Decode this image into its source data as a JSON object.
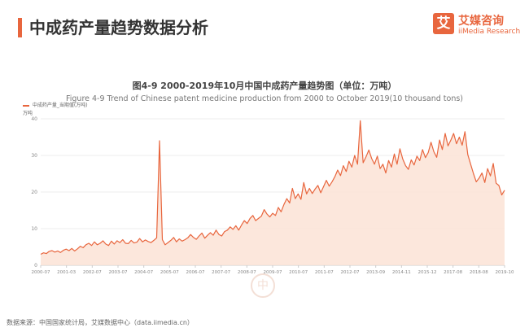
{
  "header": {
    "title": "中成药产量趋势数据分析"
  },
  "brand": {
    "logo_char": "艾",
    "name_cn": "艾媒咨询",
    "name_en": "iiMedia Research",
    "color": "#e8663e"
  },
  "chart_data": {
    "type": "area",
    "title": "图4-9 2000-2019年10月中国中成药产量趋势图（单位：万吨）",
    "subtitle": "Figure 4-9 Trend of Chinese patent medicine production from 2000 to October 2019(10 thousand tons)",
    "legend": "中成药产量_当期值(万吨)",
    "unit_label": "万吨",
    "x_ticks": [
      "2000-07",
      "2001-03",
      "2002-07",
      "2003-07",
      "2004-07",
      "2005-07",
      "2006-07",
      "2007-07",
      "2008-07",
      "2009-07",
      "2010-07",
      "2011-07",
      "2012-07",
      "2013-09",
      "2014-11",
      "2015-12",
      "2017-08",
      "2018-08",
      "2019-10"
    ],
    "ylim": [
      0,
      40
    ],
    "y_ticks": [
      0,
      10,
      20,
      30,
      40
    ],
    "line_color": "#e8663e",
    "fill_color": "#fbe3d6",
    "series": [
      {
        "values": [
          3,
          3.4,
          3.2,
          3.8,
          4,
          3.6,
          3.9,
          3.5,
          4.1,
          4.4,
          4.0,
          4.6,
          3.9,
          4.5,
          5.2,
          4.8,
          5.6,
          6.0,
          5.4,
          6.4,
          5.6,
          6.0,
          6.7,
          5.8,
          5.4,
          6.6,
          5.8,
          6.7,
          6.2,
          7.0,
          6.0,
          5.9,
          6.8,
          6.1,
          6.3,
          7.3,
          6.4,
          6.9,
          6.5,
          6.2,
          6.8,
          7.5,
          34.0,
          7.0,
          5.6,
          6.2,
          6.8,
          7.6,
          6.4,
          7.2,
          6.6,
          7.0,
          7.5,
          8.4,
          7.6,
          7.1,
          8.0,
          8.8,
          7.4,
          8.2,
          8.9,
          8.2,
          9.6,
          8.4,
          8.0,
          9.2,
          9.6,
          10.5,
          9.8,
          10.8,
          9.6,
          11.0,
          12.2,
          11.4,
          12.8,
          13.6,
          12.2,
          12.8,
          13.4,
          15.2,
          14.0,
          13.2,
          14.2,
          13.6,
          15.8,
          14.6,
          16.6,
          18.2,
          17.0,
          21.0,
          18.2,
          19.5,
          18.0,
          22.6,
          19.5,
          21.0,
          19.6,
          20.8,
          21.8,
          19.8,
          21.5,
          23.2,
          21.6,
          22.8,
          24.2,
          26.0,
          24.5,
          27.2,
          25.6,
          28.4,
          26.8,
          30.0,
          27.6,
          39.5,
          28.0,
          29.6,
          31.5,
          29.2,
          27.6,
          29.8,
          26.4,
          27.6,
          25.2,
          28.6,
          26.8,
          30.4,
          27.6,
          31.8,
          29.0,
          27.2,
          26.2,
          28.8,
          27.4,
          29.8,
          28.6,
          31.6,
          29.4,
          30.8,
          33.6,
          31.0,
          29.5,
          34.2,
          31.6,
          36.0,
          32.6,
          34.2,
          36.0,
          33.2,
          35.0,
          32.8,
          36.5,
          30.2,
          27.6,
          25.0,
          22.8,
          23.8,
          25.2,
          22.6,
          26.4,
          24.4,
          27.8,
          22.4,
          21.8,
          19.2,
          20.5
        ]
      }
    ]
  },
  "footer": {
    "source": "数据来源：中国国家统计局，艾媒数据中心（data.iimedia.cn）"
  }
}
